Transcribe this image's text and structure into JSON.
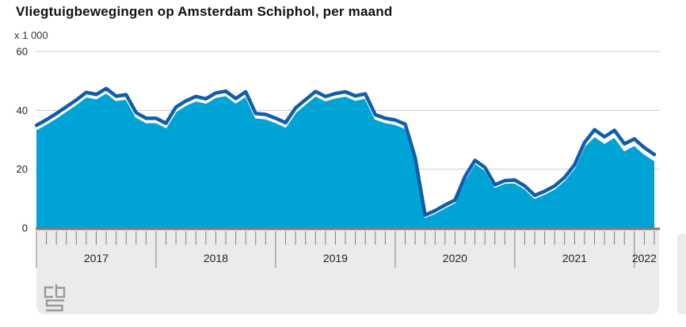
{
  "title": "Vliegtuigbewegingen op Amsterdam Schiphol, per maand",
  "unit_label": "x 1 000",
  "branding": {
    "logo_text": "cbs"
  },
  "colors": {
    "area_fill": "#00a3d6",
    "line_dark": "#0f5eab",
    "area_edge_white": "#ffffff",
    "grid": "#cccccc",
    "baseline": "#7a7a7a",
    "panel": "#ebebeb",
    "tick": "#7f7f7f",
    "axis_text": "#222222"
  },
  "chart_data": {
    "type": "area",
    "title": "Vliegtuigbewegingen op Amsterdam Schiphol, per maand",
    "ylabel": "x 1 000",
    "ylim": [
      0,
      60
    ],
    "y_ticks": [
      0,
      20,
      40,
      60
    ],
    "grid": "horizontal",
    "legend": "none",
    "x_year_labels": [
      "2017",
      "2018",
      "2019",
      "2020",
      "2021",
      "2022"
    ],
    "x": [
      "2017-01",
      "2017-02",
      "2017-03",
      "2017-04",
      "2017-05",
      "2017-06",
      "2017-07",
      "2017-08",
      "2017-09",
      "2017-10",
      "2017-11",
      "2017-12",
      "2018-01",
      "2018-02",
      "2018-03",
      "2018-04",
      "2018-05",
      "2018-06",
      "2018-07",
      "2018-08",
      "2018-09",
      "2018-10",
      "2018-11",
      "2018-12",
      "2019-01",
      "2019-02",
      "2019-03",
      "2019-04",
      "2019-05",
      "2019-06",
      "2019-07",
      "2019-08",
      "2019-09",
      "2019-10",
      "2019-11",
      "2019-12",
      "2020-01",
      "2020-02",
      "2020-03",
      "2020-04",
      "2020-05",
      "2020-06",
      "2020-07",
      "2020-08",
      "2020-09",
      "2020-10",
      "2020-11",
      "2020-12",
      "2021-01",
      "2021-02",
      "2021-03",
      "2021-04",
      "2021-05",
      "2021-06",
      "2021-07",
      "2021-08",
      "2021-09",
      "2021-10",
      "2021-11",
      "2021-12",
      "2022-01",
      "2022-02",
      "2022-03"
    ],
    "series": [
      {
        "name": "dark blue line (totaal)",
        "color": "#0f5eab",
        "style": "line",
        "values": [
          34.9,
          36.8,
          38.9,
          41.2,
          43.5,
          46.1,
          45.4,
          47.4,
          44.8,
          45.3,
          39.2,
          37.3,
          37.3,
          35.6,
          41.1,
          43.2,
          44.7,
          43.9,
          45.9,
          46.5,
          44.0,
          46.3,
          38.9,
          38.6,
          37.3,
          35.8,
          40.8,
          43.6,
          46.4,
          44.7,
          45.7,
          46.3,
          44.9,
          45.6,
          38.5,
          37.3,
          36.7,
          35.3,
          24.0,
          4.4,
          5.9,
          7.8,
          9.5,
          17.5,
          23.0,
          20.6,
          14.7,
          16.1,
          16.3,
          14.3,
          11.1,
          12.5,
          14.3,
          17.2,
          21.5,
          29.1,
          33.4,
          31.0,
          33.2,
          28.6,
          30.3,
          27.3,
          25.0
        ]
      },
      {
        "name": "light blue area",
        "color": "#00a3d6",
        "style": "area",
        "values": [
          33.5,
          35.4,
          37.5,
          39.8,
          42.1,
          44.7,
          44.0,
          46.0,
          43.4,
          43.9,
          37.8,
          35.9,
          35.9,
          34.2,
          39.7,
          41.8,
          43.3,
          42.5,
          44.5,
          45.1,
          42.6,
          44.9,
          37.5,
          37.2,
          35.9,
          34.4,
          39.4,
          42.2,
          45.0,
          43.3,
          44.3,
          44.9,
          43.5,
          44.2,
          37.1,
          35.9,
          35.3,
          33.9,
          23.2,
          3.7,
          5.1,
          7.0,
          8.7,
          16.6,
          22.1,
          19.7,
          13.9,
          15.3,
          15.4,
          13.4,
          10.2,
          11.6,
          13.4,
          16.3,
          20.5,
          27.9,
          31.2,
          28.9,
          31.0,
          26.4,
          28.2,
          25.2,
          23.0
        ]
      }
    ]
  }
}
